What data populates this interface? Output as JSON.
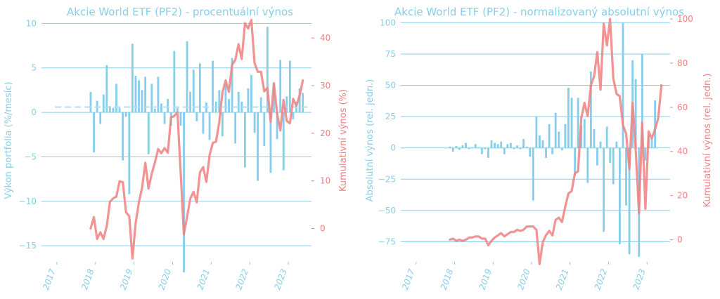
{
  "colors": {
    "left_axis": "#87CEEB",
    "right_axis": "#F08080",
    "bar": "#87CEEB",
    "line": "#F08080",
    "average_line": "#B7DCEF",
    "grid": "#87CEEB"
  },
  "chart_data": [
    {
      "type": "bar",
      "title": "Akcie World ETF (PF2) - procentuální výnos",
      "ylabel": "Výkon portfolia (%/mesíc)",
      "ylabel2": "Kumulativní výnos (%)",
      "ylim": [
        -16.8,
        10.5
      ],
      "ylim2": [
        -7,
        44
      ],
      "yticks": [
        10,
        5,
        0,
        -5,
        -10,
        -15
      ],
      "ytick_labels": [
        "10",
        "5",
        "0",
        "−5",
        "−10",
        "−15"
      ],
      "yticks2": [
        40,
        30,
        20,
        10,
        0
      ],
      "ytick2_labels": [
        "40",
        "30",
        "20",
        "10",
        "0"
      ],
      "xlim": [
        2016.6,
        2023.6
      ],
      "xticks": [
        2017,
        2018,
        2019,
        2020,
        2021,
        2022,
        2023
      ],
      "xtick_labels": [
        "2017",
        "2018",
        "2019",
        "2020",
        "2021",
        "2022",
        "2023"
      ],
      "average": 0.6,
      "grid": true,
      "x": [
        "2017-11",
        "2017-12",
        "2018-01",
        "2018-02",
        "2018-03",
        "2018-04",
        "2018-05",
        "2018-06",
        "2018-07",
        "2018-08",
        "2018-09",
        "2018-10",
        "2018-11",
        "2018-12",
        "2019-01",
        "2019-02",
        "2019-03",
        "2019-04",
        "2019-05",
        "2019-06",
        "2019-07",
        "2019-08",
        "2019-09",
        "2019-10",
        "2019-11",
        "2019-12",
        "2020-01",
        "2020-02",
        "2020-03",
        "2020-04",
        "2020-05",
        "2020-06",
        "2020-07",
        "2020-08",
        "2020-09",
        "2020-10",
        "2020-11",
        "2020-12",
        "2021-01",
        "2021-02",
        "2021-03",
        "2021-04",
        "2021-05",
        "2021-06",
        "2021-07",
        "2021-08",
        "2021-09",
        "2021-10",
        "2021-11",
        "2021-12",
        "2022-01",
        "2022-02",
        "2022-03",
        "2022-04",
        "2022-05",
        "2022-06",
        "2022-07",
        "2022-08",
        "2022-09",
        "2022-10",
        "2022-11",
        "2022-12",
        "2023-01",
        "2023-02",
        "2023-03",
        "2023-04",
        "2023-05"
      ],
      "series": [
        {
          "kind": "bar",
          "axis": "left",
          "values": [
            2.3,
            -4.5,
            1.3,
            -1.3,
            2.0,
            5.3,
            0.7,
            0.5,
            3.2,
            0.5,
            -5.4,
            -0.5,
            -9.2,
            7.7,
            4.1,
            3.6,
            2.5,
            4.0,
            -4.7,
            3.2,
            0.4,
            4.0,
            1.0,
            -1.3,
            1.5,
            -1.5,
            6.9,
            0.5,
            -1.5,
            -18.0,
            8.0,
            2.3,
            4.8,
            -1.0,
            5.5,
            -2.4,
            1.1,
            -3.1,
            5.8,
            1.2,
            2.5,
            -2.7,
            3.1,
            1.5,
            6.1,
            -3.5,
            2.3,
            1.2,
            -6.2,
            2.7,
            4.2,
            -2.3,
            -7.7,
            1.7,
            -3.8,
            9.6,
            -6.8,
            3.3,
            -3.0,
            5.9,
            -6.5,
            1.8,
            5.8,
            -0.8,
            1.2,
            2.7,
            2.2
          ]
        },
        {
          "kind": "line",
          "axis": "right",
          "values": [
            0.0,
            2.4,
            -2.2,
            -0.8,
            -2.2,
            0.5,
            5.6,
            6.3,
            6.7,
            9.9,
            9.7,
            3.4,
            2.6,
            -6.3,
            1.1,
            5.5,
            8.6,
            13.8,
            8.4,
            11.5,
            13.9,
            16.7,
            15.8,
            16.9,
            15.9,
            23.3,
            23.6,
            24.4,
            11.9,
            -1.2,
            2.5,
            6.3,
            7.7,
            5.5,
            11.8,
            12.9,
            9.8,
            15.4,
            18.0,
            18.2,
            22.3,
            28.6,
            31.1,
            28.7,
            34.4,
            35.4,
            38.7,
            35.6,
            43.1,
            42.0,
            43.8,
            34.7,
            32.9,
            32.9,
            28.8,
            29.5,
            22.4,
            30.5,
            24.2,
            20.6,
            27.0,
            22.6,
            22.1,
            27.2,
            25.8,
            27.9,
            31.1
          ]
        }
      ]
    },
    {
      "type": "bar",
      "title": "Akcie World ETF (PF2) - normalizovaný absolutní výnos",
      "ylabel": "Absolutní výnos (rel. jedn.)",
      "ylabel2": "Kumulativní výnos (rel. jedn.)",
      "ylim": [
        -91,
        103
      ],
      "ylim2": [
        -10,
        100
      ],
      "yticks": [
        100,
        75,
        50,
        25,
        0,
        -25,
        -50,
        -75
      ],
      "ytick_labels": [
        "100",
        "75",
        "50",
        "25",
        "0",
        "−25",
        "−50",
        "−75"
      ],
      "yticks2": [
        100,
        80,
        60,
        40,
        20,
        0
      ],
      "ytick2_labels": [
        "100",
        "80",
        "60",
        "40",
        "20",
        "0"
      ],
      "xlim": [
        2016.6,
        2023.6
      ],
      "xticks": [
        2017,
        2018,
        2019,
        2020,
        2021,
        2022,
        2023
      ],
      "xtick_labels": [
        "2017",
        "2018",
        "2019",
        "2020",
        "2021",
        "2022",
        "2023"
      ],
      "grid": true,
      "x": [
        "2017-11",
        "2017-12",
        "2018-01",
        "2018-02",
        "2018-03",
        "2018-04",
        "2018-05",
        "2018-06",
        "2018-07",
        "2018-08",
        "2018-09",
        "2018-10",
        "2018-11",
        "2018-12",
        "2019-01",
        "2019-02",
        "2019-03",
        "2019-04",
        "2019-05",
        "2019-06",
        "2019-07",
        "2019-08",
        "2019-09",
        "2019-10",
        "2019-11",
        "2019-12",
        "2020-01",
        "2020-02",
        "2020-03",
        "2020-04",
        "2020-05",
        "2020-06",
        "2020-07",
        "2020-08",
        "2020-09",
        "2020-10",
        "2020-11",
        "2020-12",
        "2021-01",
        "2021-02",
        "2021-03",
        "2021-04",
        "2021-05",
        "2021-06",
        "2021-07",
        "2021-08",
        "2021-09",
        "2021-10",
        "2021-11",
        "2021-12",
        "2022-01",
        "2022-02",
        "2022-03",
        "2022-04",
        "2022-05",
        "2022-06",
        "2022-07",
        "2022-08",
        "2022-09",
        "2022-10",
        "2022-11",
        "2022-12",
        "2023-01",
        "2023-02",
        "2023-03",
        "2023-04",
        "2023-05"
      ],
      "series": [
        {
          "kind": "bar",
          "axis": "left",
          "values": [
            1.0,
            -3.0,
            1.5,
            -1.5,
            2.0,
            4.0,
            -1.0,
            0.5,
            3.0,
            0.5,
            -5.0,
            -1.0,
            -8.0,
            6.0,
            4.0,
            3.0,
            5.0,
            -5.0,
            3.0,
            4.0,
            -1.0,
            2.0,
            -1.0,
            7.0,
            1.0,
            -7.0,
            -42.0,
            25.0,
            10.0,
            6.0,
            -8.0,
            19.0,
            -5.0,
            28.0,
            13.0,
            -2.0,
            19.0,
            48.0,
            40.0,
            -22.0,
            40.0,
            18.0,
            23.0,
            -28.0,
            61.0,
            15.0,
            -14.0,
            5.0,
            -67.0,
            17.0,
            -12.0,
            -29.0,
            5.0,
            -77.0,
            100.0,
            -46.0,
            -85.0,
            70.0,
            55.0,
            -87.0,
            75.0,
            -10.0,
            10.0,
            8.0,
            38.0,
            0,
            0
          ]
        },
        {
          "kind": "line",
          "axis": "right",
          "values": [
            0.0,
            0.5,
            -0.5,
            0.0,
            -0.5,
            0.0,
            1.0,
            1.0,
            1.5,
            1.5,
            0.5,
            0.5,
            -2.5,
            -0.5,
            1.0,
            2.0,
            3.0,
            1.5,
            2.5,
            3.5,
            3.5,
            4.5,
            4.0,
            4.5,
            6.0,
            6.0,
            6.0,
            4.5,
            -11.0,
            -1.0,
            2.0,
            4.0,
            2.0,
            9.0,
            10.0,
            8.0,
            15.0,
            21.0,
            22.0,
            30.0,
            31.0,
            55.0,
            62.0,
            56.0,
            70.0,
            74.0,
            85.0,
            68.0,
            98.0,
            88.0,
            100.0,
            73.0,
            66.0,
            65.0,
            52.0,
            48.0,
            32.0,
            62.0,
            40.0,
            12.0,
            53.0,
            14.0,
            49.0,
            46.0,
            50.0,
            55.0,
            70.0
          ]
        }
      ]
    }
  ]
}
